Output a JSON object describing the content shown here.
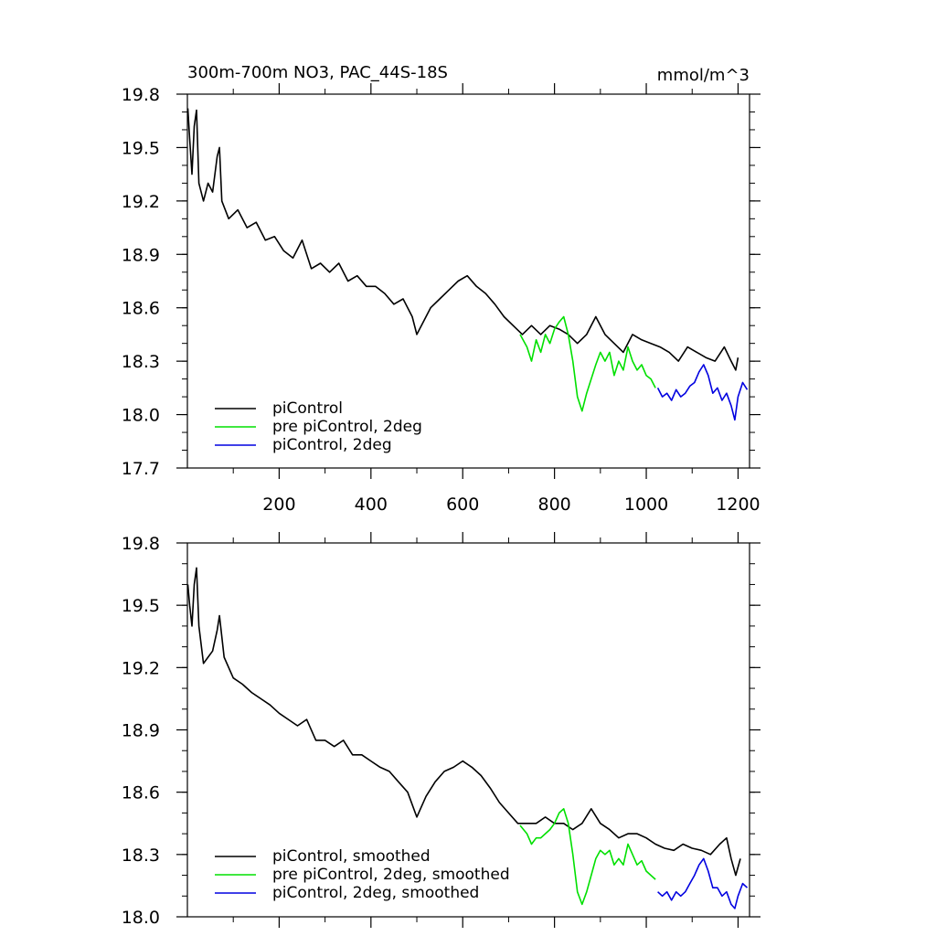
{
  "chart_data": [
    {
      "type": "line",
      "title": "300m-700m NO3, PAC_44S-18S",
      "units": "mmol/m^3",
      "xlim": [
        0,
        1225
      ],
      "ylim": [
        17.7,
        19.8
      ],
      "yticks": [
        "19.8",
        "19.5",
        "19.2",
        "18.9",
        "18.6",
        "18.3",
        "18.0",
        "17.7"
      ],
      "xticks": [
        "200",
        "400",
        "600",
        "800",
        "1000",
        "1200"
      ],
      "grid": false,
      "legend_position": "bottom-left",
      "series": [
        {
          "name": "piControl",
          "color": "#000000",
          "points": [
            [
              1,
              19.72
            ],
            [
              5,
              19.55
            ],
            [
              10,
              19.35
            ],
            [
              15,
              19.62
            ],
            [
              20,
              19.71
            ],
            [
              25,
              19.3
            ],
            [
              35,
              19.2
            ],
            [
              45,
              19.3
            ],
            [
              55,
              19.25
            ],
            [
              65,
              19.45
            ],
            [
              70,
              19.5
            ],
            [
              75,
              19.2
            ],
            [
              90,
              19.1
            ],
            [
              110,
              19.15
            ],
            [
              130,
              19.05
            ],
            [
              150,
              19.08
            ],
            [
              170,
              18.98
            ],
            [
              190,
              19.0
            ],
            [
              210,
              18.92
            ],
            [
              230,
              18.88
            ],
            [
              250,
              18.98
            ],
            [
              270,
              18.82
            ],
            [
              290,
              18.85
            ],
            [
              310,
              18.8
            ],
            [
              330,
              18.85
            ],
            [
              350,
              18.75
            ],
            [
              370,
              18.78
            ],
            [
              390,
              18.72
            ],
            [
              410,
              18.72
            ],
            [
              430,
              18.68
            ],
            [
              450,
              18.62
            ],
            [
              470,
              18.65
            ],
            [
              490,
              18.55
            ],
            [
              500,
              18.45
            ],
            [
              510,
              18.5
            ],
            [
              530,
              18.6
            ],
            [
              550,
              18.65
            ],
            [
              570,
              18.7
            ],
            [
              590,
              18.75
            ],
            [
              610,
              18.78
            ],
            [
              630,
              18.72
            ],
            [
              650,
              18.68
            ],
            [
              670,
              18.62
            ],
            [
              690,
              18.55
            ],
            [
              710,
              18.5
            ],
            [
              730,
              18.45
            ],
            [
              750,
              18.5
            ],
            [
              770,
              18.45
            ],
            [
              790,
              18.5
            ],
            [
              810,
              18.48
            ],
            [
              830,
              18.45
            ],
            [
              850,
              18.4
            ],
            [
              870,
              18.45
            ],
            [
              890,
              18.55
            ],
            [
              910,
              18.45
            ],
            [
              930,
              18.4
            ],
            [
              950,
              18.35
            ],
            [
              970,
              18.45
            ],
            [
              990,
              18.42
            ],
            [
              1010,
              18.4
            ],
            [
              1030,
              18.38
            ],
            [
              1050,
              18.35
            ],
            [
              1070,
              18.3
            ],
            [
              1090,
              18.38
            ],
            [
              1110,
              18.35
            ],
            [
              1130,
              18.32
            ],
            [
              1150,
              18.3
            ],
            [
              1170,
              18.38
            ],
            [
              1185,
              18.3
            ],
            [
              1195,
              18.25
            ],
            [
              1200,
              18.32
            ]
          ]
        },
        {
          "name": "pre piControl, 2deg",
          "color": "#00e000",
          "points": [
            [
              725,
              18.45
            ],
            [
              740,
              18.38
            ],
            [
              750,
              18.3
            ],
            [
              760,
              18.42
            ],
            [
              770,
              18.35
            ],
            [
              780,
              18.45
            ],
            [
              790,
              18.4
            ],
            [
              800,
              18.48
            ],
            [
              810,
              18.52
            ],
            [
              820,
              18.55
            ],
            [
              830,
              18.45
            ],
            [
              840,
              18.3
            ],
            [
              850,
              18.1
            ],
            [
              860,
              18.02
            ],
            [
              870,
              18.12
            ],
            [
              880,
              18.2
            ],
            [
              890,
              18.28
            ],
            [
              900,
              18.35
            ],
            [
              910,
              18.3
            ],
            [
              920,
              18.35
            ],
            [
              930,
              18.22
            ],
            [
              940,
              18.3
            ],
            [
              950,
              18.25
            ],
            [
              960,
              18.38
            ],
            [
              970,
              18.3
            ],
            [
              980,
              18.25
            ],
            [
              990,
              18.28
            ],
            [
              1000,
              18.22
            ],
            [
              1010,
              18.2
            ],
            [
              1020,
              18.15
            ]
          ]
        },
        {
          "name": "piControl, 2deg",
          "color": "#0000e0",
          "points": [
            [
              1025,
              18.15
            ],
            [
              1035,
              18.1
            ],
            [
              1045,
              18.12
            ],
            [
              1055,
              18.08
            ],
            [
              1065,
              18.14
            ],
            [
              1075,
              18.1
            ],
            [
              1085,
              18.12
            ],
            [
              1095,
              18.16
            ],
            [
              1105,
              18.18
            ],
            [
              1115,
              18.24
            ],
            [
              1125,
              18.28
            ],
            [
              1135,
              18.22
            ],
            [
              1145,
              18.12
            ],
            [
              1155,
              18.15
            ],
            [
              1165,
              18.08
            ],
            [
              1175,
              18.12
            ],
            [
              1185,
              18.05
            ],
            [
              1193,
              17.97
            ],
            [
              1200,
              18.1
            ],
            [
              1210,
              18.18
            ],
            [
              1220,
              18.14
            ]
          ]
        }
      ]
    },
    {
      "type": "line",
      "xlim": [
        0,
        1225
      ],
      "ylim": [
        18.0,
        19.8
      ],
      "yticks": [
        "19.8",
        "19.5",
        "19.2",
        "18.9",
        "18.6",
        "18.3",
        "18.0"
      ],
      "grid": false,
      "legend_position": "bottom-left",
      "series": [
        {
          "name": "piControl, smoothed",
          "color": "#000000",
          "points": [
            [
              1,
              19.6
            ],
            [
              5,
              19.5
            ],
            [
              10,
              19.4
            ],
            [
              15,
              19.6
            ],
            [
              20,
              19.68
            ],
            [
              25,
              19.4
            ],
            [
              35,
              19.22
            ],
            [
              45,
              19.25
            ],
            [
              55,
              19.28
            ],
            [
              65,
              19.38
            ],
            [
              70,
              19.45
            ],
            [
              80,
              19.25
            ],
            [
              100,
              19.15
            ],
            [
              120,
              19.12
            ],
            [
              140,
              19.08
            ],
            [
              160,
              19.05
            ],
            [
              180,
              19.02
            ],
            [
              200,
              18.98
            ],
            [
              220,
              18.95
            ],
            [
              240,
              18.92
            ],
            [
              260,
              18.95
            ],
            [
              280,
              18.85
            ],
            [
              300,
              18.85
            ],
            [
              320,
              18.82
            ],
            [
              340,
              18.85
            ],
            [
              360,
              18.78
            ],
            [
              380,
              18.78
            ],
            [
              400,
              18.75
            ],
            [
              420,
              18.72
            ],
            [
              440,
              18.7
            ],
            [
              460,
              18.65
            ],
            [
              480,
              18.6
            ],
            [
              500,
              18.48
            ],
            [
              520,
              18.58
            ],
            [
              540,
              18.65
            ],
            [
              560,
              18.7
            ],
            [
              580,
              18.72
            ],
            [
              600,
              18.75
            ],
            [
              620,
              18.72
            ],
            [
              640,
              18.68
            ],
            [
              660,
              18.62
            ],
            [
              680,
              18.55
            ],
            [
              700,
              18.5
            ],
            [
              720,
              18.45
            ],
            [
              740,
              18.45
            ],
            [
              760,
              18.45
            ],
            [
              780,
              18.48
            ],
            [
              800,
              18.45
            ],
            [
              820,
              18.45
            ],
            [
              840,
              18.42
            ],
            [
              860,
              18.45
            ],
            [
              880,
              18.52
            ],
            [
              900,
              18.45
            ],
            [
              920,
              18.42
            ],
            [
              940,
              18.38
            ],
            [
              960,
              18.4
            ],
            [
              980,
              18.4
            ],
            [
              1000,
              18.38
            ],
            [
              1020,
              18.35
            ],
            [
              1040,
              18.33
            ],
            [
              1060,
              18.32
            ],
            [
              1080,
              18.35
            ],
            [
              1100,
              18.33
            ],
            [
              1120,
              18.32
            ],
            [
              1140,
              18.3
            ],
            [
              1160,
              18.35
            ],
            [
              1175,
              18.38
            ],
            [
              1185,
              18.28
            ],
            [
              1195,
              18.2
            ],
            [
              1205,
              18.28
            ]
          ]
        },
        {
          "name": "pre piControl, 2deg, smoothed",
          "color": "#00e000",
          "points": [
            [
              725,
              18.44
            ],
            [
              740,
              18.4
            ],
            [
              750,
              18.35
            ],
            [
              760,
              18.38
            ],
            [
              770,
              18.38
            ],
            [
              780,
              18.4
            ],
            [
              790,
              18.42
            ],
            [
              800,
              18.45
            ],
            [
              810,
              18.5
            ],
            [
              820,
              18.52
            ],
            [
              830,
              18.45
            ],
            [
              840,
              18.3
            ],
            [
              850,
              18.12
            ],
            [
              860,
              18.06
            ],
            [
              870,
              18.12
            ],
            [
              880,
              18.2
            ],
            [
              890,
              18.28
            ],
            [
              900,
              18.32
            ],
            [
              910,
              18.3
            ],
            [
              920,
              18.32
            ],
            [
              930,
              18.25
            ],
            [
              940,
              18.28
            ],
            [
              950,
              18.25
            ],
            [
              960,
              18.35
            ],
            [
              970,
              18.3
            ],
            [
              980,
              18.25
            ],
            [
              990,
              18.27
            ],
            [
              1000,
              18.22
            ],
            [
              1010,
              18.2
            ],
            [
              1020,
              18.18
            ]
          ]
        },
        {
          "name": "piControl, 2deg, smoothed",
          "color": "#0000e0",
          "points": [
            [
              1025,
              18.12
            ],
            [
              1035,
              18.1
            ],
            [
              1045,
              18.12
            ],
            [
              1055,
              18.08
            ],
            [
              1065,
              18.12
            ],
            [
              1075,
              18.1
            ],
            [
              1085,
              18.12
            ],
            [
              1095,
              18.16
            ],
            [
              1105,
              18.2
            ],
            [
              1115,
              18.25
            ],
            [
              1125,
              18.28
            ],
            [
              1135,
              18.22
            ],
            [
              1145,
              18.14
            ],
            [
              1155,
              18.14
            ],
            [
              1165,
              18.1
            ],
            [
              1175,
              18.12
            ],
            [
              1185,
              18.06
            ],
            [
              1193,
              18.04
            ],
            [
              1200,
              18.1
            ],
            [
              1210,
              18.16
            ],
            [
              1220,
              18.14
            ]
          ]
        }
      ]
    }
  ]
}
